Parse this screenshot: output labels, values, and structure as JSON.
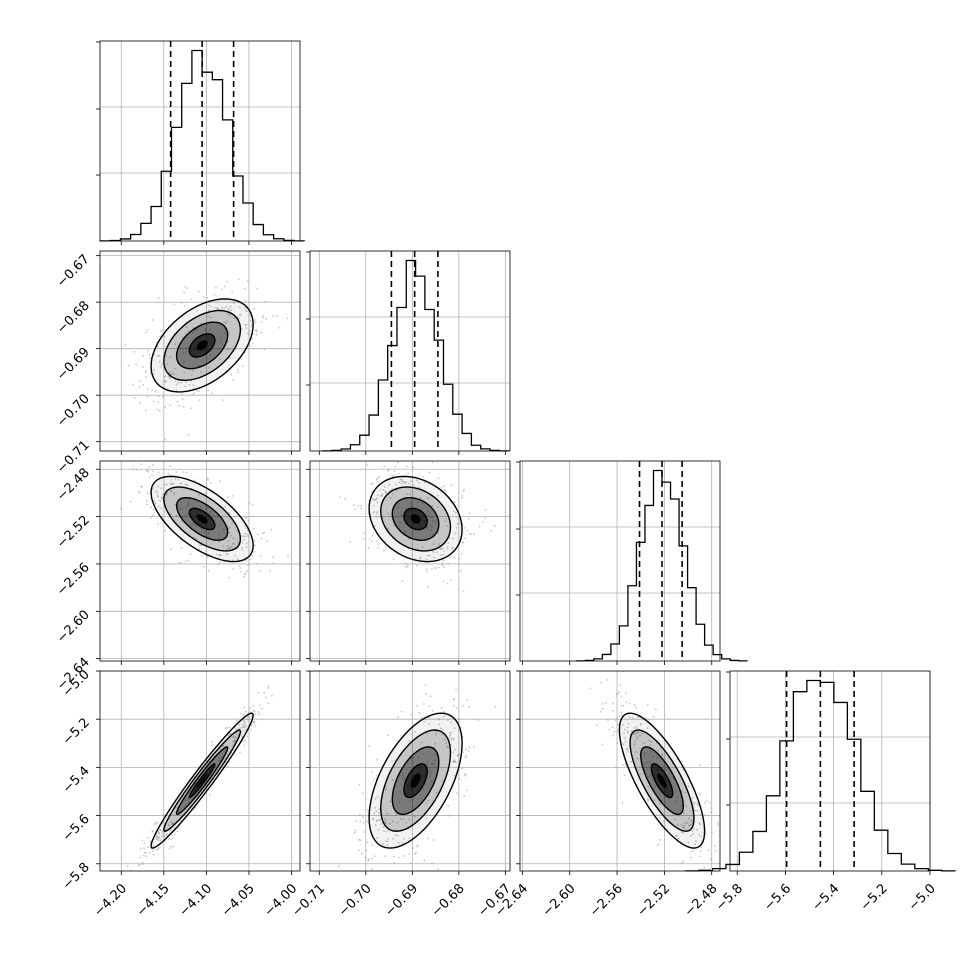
{
  "chart_data": {
    "type": "corner",
    "title": "",
    "grid": true,
    "colors": {
      "line": "#000000",
      "grid": "#b0b0b0",
      "scatter": "#9a9a9a",
      "density": "#000000"
    },
    "parameters": [
      {
        "index": 0,
        "range": [
          -4.225,
          -3.99
        ],
        "ticks": [
          "−4.20",
          "−4.15",
          "−4.10",
          "−4.05",
          "−4.00"
        ],
        "tick_values": [
          -4.2,
          -4.15,
          -4.1,
          -4.05,
          -4.0
        ],
        "quantiles": [
          -4.142,
          -4.105,
          -4.068
        ],
        "mean": -4.105,
        "sd": 0.03
      },
      {
        "index": 1,
        "range": [
          -0.712,
          -0.669
        ],
        "ticks": [
          "−0.71",
          "−0.70",
          "−0.69",
          "−0.68",
          "−0.67"
        ],
        "tick_values": [
          -0.71,
          -0.7,
          -0.69,
          -0.68,
          -0.67
        ],
        "quantiles": [
          -0.6945,
          -0.6895,
          -0.6845
        ],
        "mean": -0.6893,
        "sd": 0.005
      },
      {
        "index": 2,
        "range": [
          -2.642,
          -2.473
        ],
        "ticks": [
          "−2.64",
          "−2.60",
          "−2.56",
          "−2.52",
          "−2.48"
        ],
        "tick_values": [
          -2.64,
          -2.6,
          -2.56,
          -2.52,
          -2.48
        ],
        "quantiles": [
          -2.541,
          -2.522,
          -2.505
        ],
        "mean": -2.522,
        "sd": 0.018
      },
      {
        "index": 3,
        "range": [
          -5.83,
          -5.0
        ],
        "ticks": [
          "−5.8",
          "−5.6",
          "−5.4",
          "−5.2",
          "−5.0"
        ],
        "tick_values": [
          -5.8,
          -5.6,
          -5.4,
          -5.2,
          -5.0
        ],
        "quantiles": [
          -5.595,
          -5.455,
          -5.315
        ],
        "mean": -5.455,
        "sd": 0.14
      }
    ],
    "correlations": [
      {
        "x": 0,
        "y": 1,
        "rho": 0.45
      },
      {
        "x": 0,
        "y": 2,
        "rho": -0.62
      },
      {
        "x": 1,
        "y": 2,
        "rho": -0.25
      },
      {
        "x": 0,
        "y": 3,
        "rho": 0.97
      },
      {
        "x": 1,
        "y": 3,
        "rho": 0.55
      },
      {
        "x": 2,
        "y": 3,
        "rho": -0.75
      }
    ],
    "contour_levels_sigma": [
      0.5,
      1.0,
      1.5,
      2.0
    ],
    "histogram_bins": 20
  }
}
